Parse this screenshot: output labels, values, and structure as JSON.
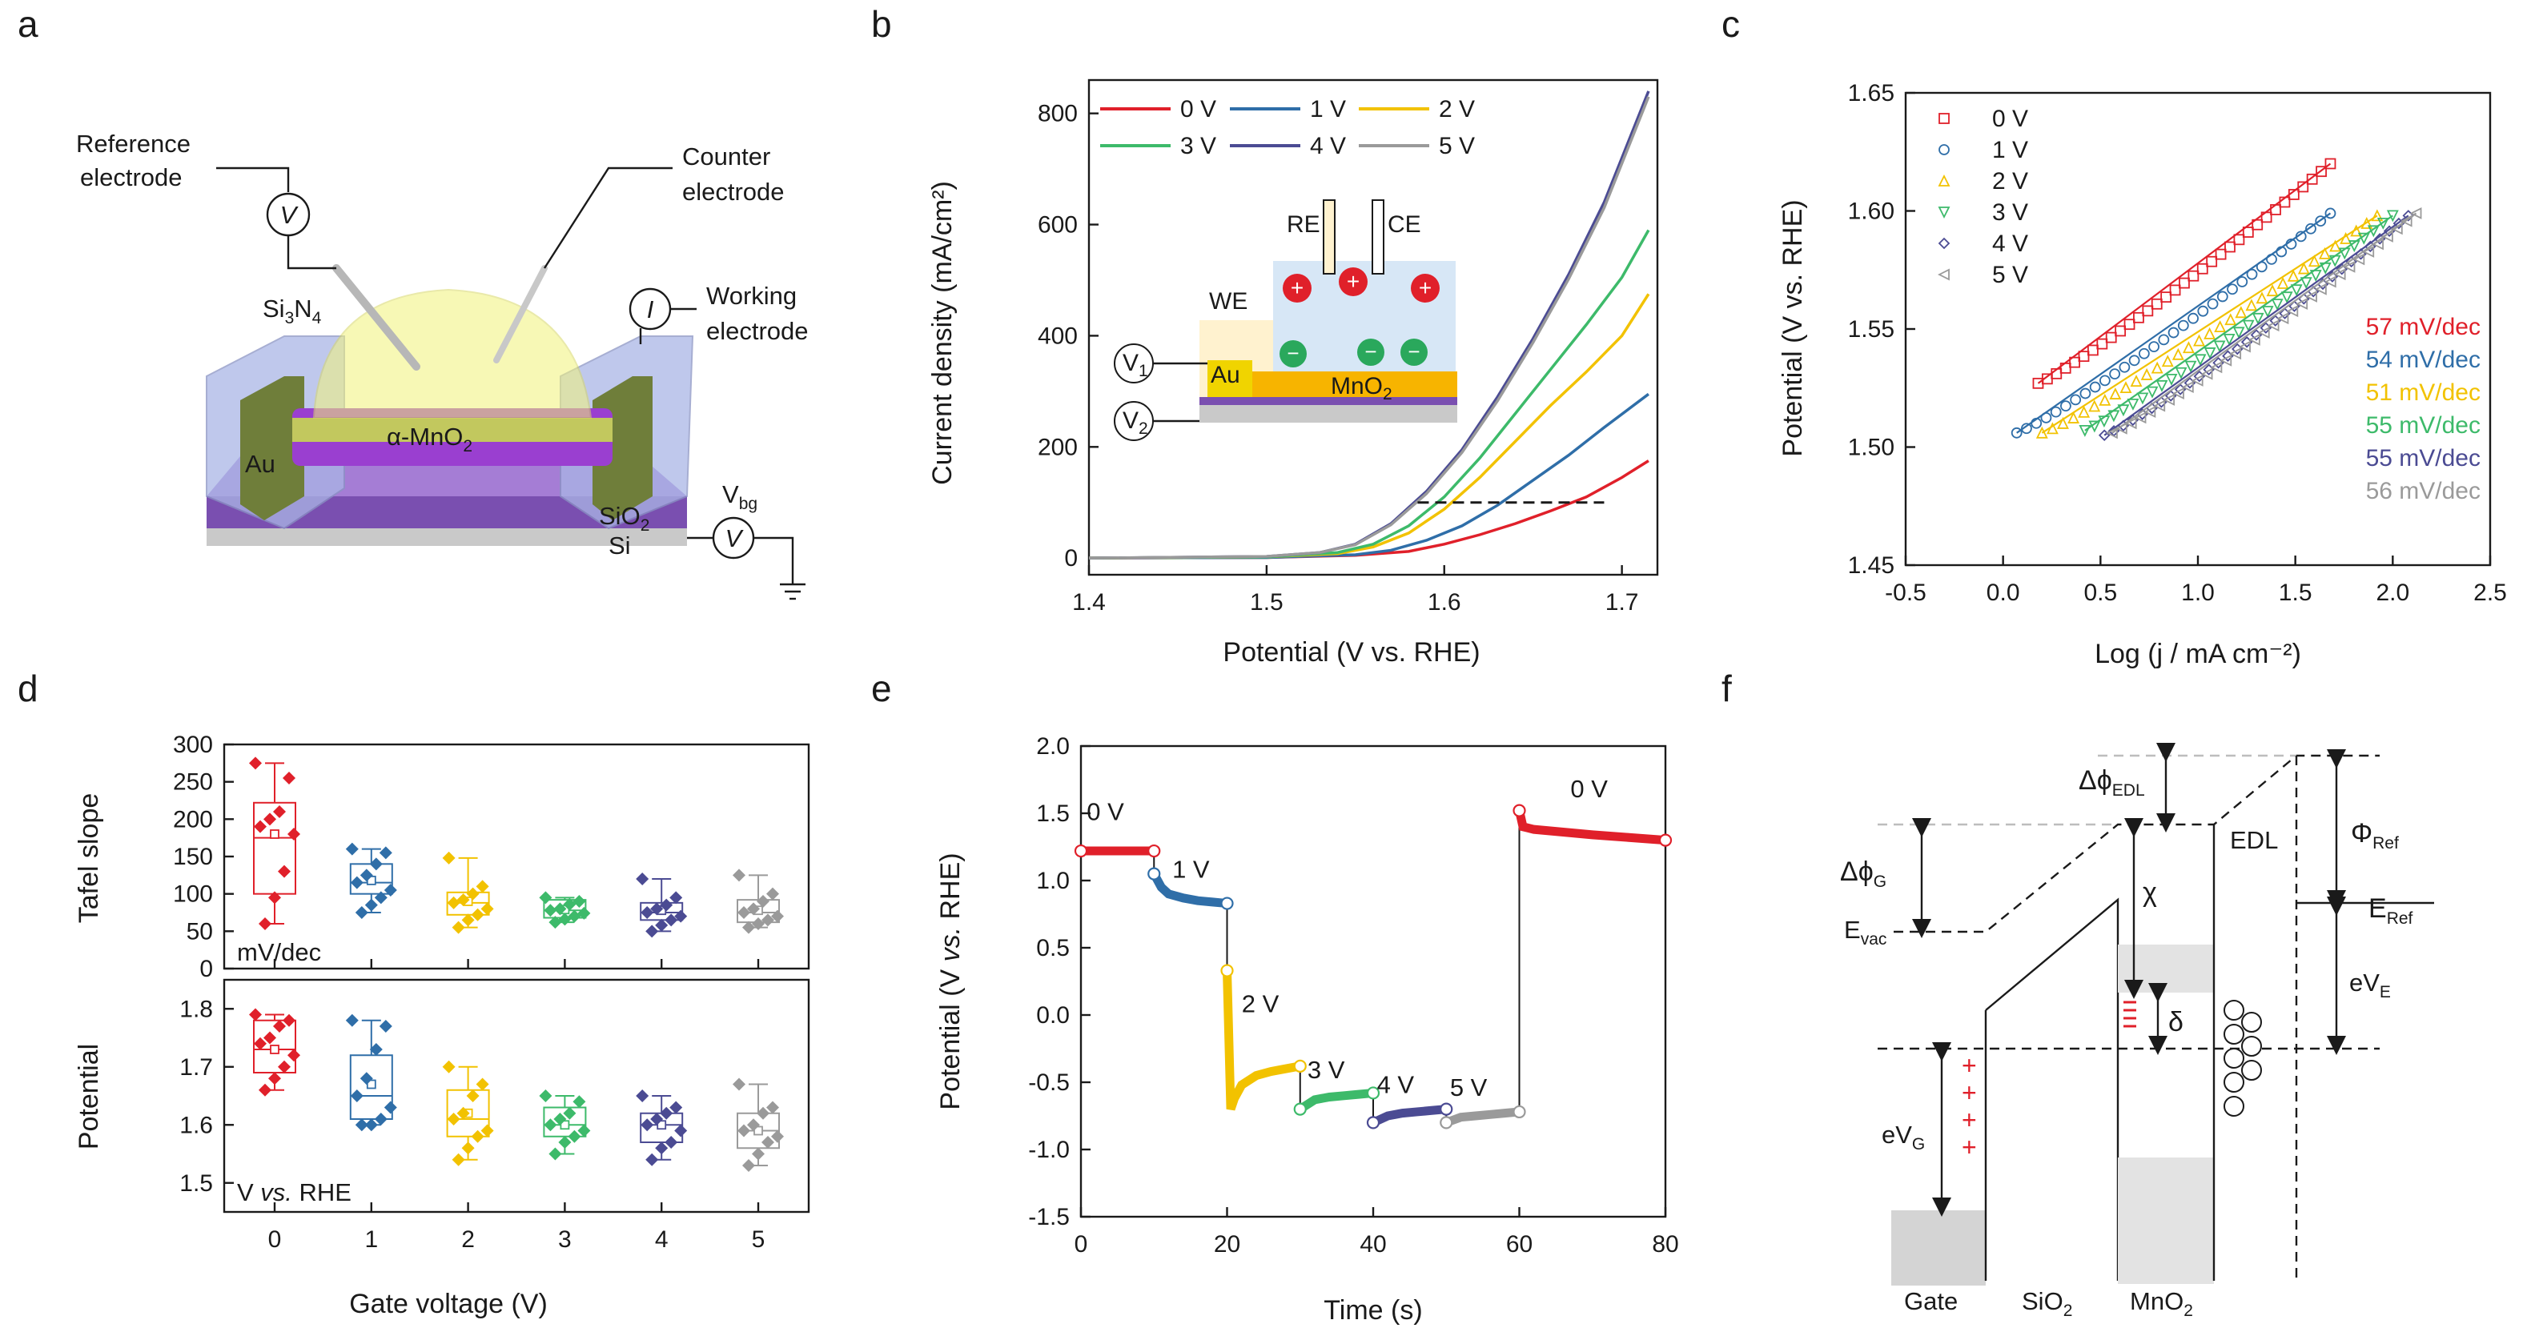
{
  "panels": {
    "a": {
      "letter": "a",
      "labels": {
        "reference": "Reference",
        "reference2": "electrode",
        "counter": "Counter",
        "counter2": "electrode",
        "working": "Working",
        "working2": "electrode",
        "si3n4": "Si",
        "si3n4_sub1": "3",
        "si3n4_mid": "N",
        "si3n4_sub2": "4",
        "au": "Au",
        "mno2": "α-MnO",
        "mno2_sub": "2",
        "sio2": "SiO",
        "sio2_sub": "2",
        "si": "Si",
        "vbg": "V",
        "vbg_sub": "bg",
        "v_symbol": "V",
        "i_symbol": "I"
      }
    },
    "b": {
      "letter": "b",
      "inset": {
        "re": "RE",
        "ce": "CE",
        "we": "WE",
        "au": "Au",
        "mno2": "MnO",
        "mno2_sub": "2",
        "v1": "V",
        "v1_sub": "1",
        "v2": "V",
        "v2_sub": "2",
        "plus": "+",
        "minus": "−"
      }
    },
    "c": {
      "letter": "c"
    },
    "d": {
      "letter": "d",
      "top_unit": "mV/dec",
      "bottom_unit_prefix": "V ",
      "bottom_unit_italic": "vs.",
      "bottom_unit_suffix": " RHE"
    },
    "e": {
      "letter": "e"
    },
    "f": {
      "letter": "f",
      "labels": {
        "dphi_edl": "Δϕ",
        "dphi_edl_sub": "EDL",
        "dphi_g": "Δϕ",
        "dphi_g_sub": "G",
        "evac": "E",
        "evac_sub": "vac",
        "chi": "χ",
        "delta": "δ",
        "edl": "EDL",
        "phi_ref": "Φ",
        "phi_ref_sub": "Ref",
        "e_ref": "E",
        "e_ref_sub": "Ref",
        "ev_e": "eV",
        "ev_e_sub": "E",
        "ev_g": "eV",
        "ev_g_sub": "G",
        "gate": "Gate",
        "sio2": "SiO",
        "sio2_sub": "2",
        "mno2": "MnO",
        "mno2_sub": "2",
        "plus": "+",
        "minus": "−"
      }
    }
  },
  "colors": {
    "0V": "#e0202a",
    "1V": "#2f6ea8",
    "2V": "#f2c200",
    "3V": "#3dba6a",
    "4V": "#4b4b93",
    "5V": "#9a9a9a"
  },
  "chart_data": [
    {
      "panel": "b",
      "type": "line",
      "xlabel": "Potential (V vs. RHE)",
      "ylabel": "Current density (mA/cm²)",
      "xlim": [
        1.4,
        1.72
      ],
      "ylim": [
        -30,
        860
      ],
      "xticks": [
        "1.4",
        "1.5",
        "1.6",
        "1.7"
      ],
      "yticks": [
        "0",
        "200",
        "400",
        "600",
        "800"
      ],
      "legend": [
        "0 V",
        "1 V",
        "2 V",
        "3 V",
        "4 V",
        "5 V"
      ],
      "series": [
        {
          "name": "0 V",
          "x": [
            1.4,
            1.5,
            1.55,
            1.58,
            1.6,
            1.62,
            1.64,
            1.66,
            1.68,
            1.7,
            1.715
          ],
          "y": [
            0,
            1,
            5,
            12,
            25,
            42,
            62,
            85,
            110,
            145,
            175
          ]
        },
        {
          "name": "1 V",
          "x": [
            1.4,
            1.5,
            1.55,
            1.57,
            1.59,
            1.61,
            1.63,
            1.65,
            1.67,
            1.69,
            1.715
          ],
          "y": [
            0,
            1,
            6,
            14,
            32,
            58,
            95,
            140,
            185,
            235,
            295
          ]
        },
        {
          "name": "2 V",
          "x": [
            1.4,
            1.5,
            1.54,
            1.56,
            1.58,
            1.6,
            1.62,
            1.64,
            1.66,
            1.68,
            1.7,
            1.715
          ],
          "y": [
            0,
            2,
            8,
            20,
            45,
            88,
            145,
            210,
            275,
            335,
            400,
            475
          ]
        },
        {
          "name": "3 V",
          "x": [
            1.4,
            1.5,
            1.54,
            1.56,
            1.58,
            1.6,
            1.62,
            1.64,
            1.66,
            1.68,
            1.7,
            1.715
          ],
          "y": [
            0,
            2,
            10,
            25,
            58,
            110,
            180,
            260,
            340,
            420,
            505,
            590
          ]
        },
        {
          "name": "4 V",
          "x": [
            1.4,
            1.5,
            1.53,
            1.55,
            1.57,
            1.59,
            1.61,
            1.63,
            1.65,
            1.67,
            1.69,
            1.7,
            1.715
          ],
          "y": [
            0,
            3,
            10,
            25,
            62,
            120,
            195,
            290,
            395,
            510,
            640,
            720,
            840
          ]
        },
        {
          "name": "5 V",
          "x": [
            1.4,
            1.5,
            1.53,
            1.55,
            1.57,
            1.59,
            1.61,
            1.63,
            1.65,
            1.67,
            1.69,
            1.7,
            1.715
          ],
          "y": [
            0,
            3,
            10,
            24,
            60,
            116,
            190,
            283,
            388,
            502,
            630,
            710,
            830
          ]
        }
      ],
      "annotation": {
        "type": "dashed-line",
        "y": 100,
        "x": [
          1.585,
          1.69
        ]
      }
    },
    {
      "panel": "c",
      "type": "scatter",
      "xlabel": "Log (j / mA cm⁻²)",
      "ylabel": "Potential (V vs. RHE)",
      "xlim": [
        -0.5,
        2.5
      ],
      "ylim": [
        1.45,
        1.65
      ],
      "xticks": [
        "-0.5",
        "0.0",
        "0.5",
        "1.0",
        "1.5",
        "2.0",
        "2.5"
      ],
      "yticks": [
        "1.45",
        "1.50",
        "1.55",
        "1.60",
        "1.65"
      ],
      "legend": [
        "0 V",
        "1 V",
        "2 V",
        "3 V",
        "4 V",
        "5 V"
      ],
      "slopes": [
        "57 mV/dec",
        "54 mV/dec",
        "51 mV/dec",
        "55 mV/dec",
        "55 mV/dec",
        "56 mV/dec"
      ],
      "series": [
        {
          "name": "0 V",
          "marker": "square",
          "x0": 0.18,
          "y0": 1.527,
          "x1": 1.68,
          "y1": 1.62
        },
        {
          "name": "1 V",
          "marker": "circle",
          "x0": 0.07,
          "y0": 1.506,
          "x1": 1.68,
          "y1": 1.599
        },
        {
          "name": "2 V",
          "marker": "triangle-up",
          "x0": 0.2,
          "y0": 1.506,
          "x1": 1.92,
          "y1": 1.598
        },
        {
          "name": "3 V",
          "marker": "triangle-down",
          "x0": 0.42,
          "y0": 1.507,
          "x1": 2.0,
          "y1": 1.598
        },
        {
          "name": "4 V",
          "marker": "diamond",
          "x0": 0.52,
          "y0": 1.505,
          "x1": 2.08,
          "y1": 1.598
        },
        {
          "name": "5 V",
          "marker": "triangle-left",
          "x0": 0.56,
          "y0": 1.506,
          "x1": 2.12,
          "y1": 1.599
        }
      ]
    },
    {
      "panel": "d",
      "type": "box",
      "xlabel": "Gate voltage (V)",
      "categories": [
        "0",
        "1",
        "2",
        "3",
        "4",
        "5"
      ],
      "top": {
        "ylabel": "Tafel slope",
        "ylim": [
          0,
          300
        ],
        "yticks": [
          "0",
          "50",
          "100",
          "150",
          "200",
          "250",
          "300"
        ],
        "boxes": [
          {
            "q1": 100,
            "median": 175,
            "q3": 222,
            "min": 60,
            "max": 275,
            "mean": 180,
            "points": [
              275,
              255,
              210,
              200,
              190,
              180,
              130,
              95,
              60
            ]
          },
          {
            "q1": 100,
            "median": 115,
            "q3": 140,
            "min": 75,
            "max": 160,
            "mean": 118,
            "points": [
              160,
              155,
              140,
              125,
              115,
              105,
              95,
              85,
              75
            ]
          },
          {
            "q1": 72,
            "median": 88,
            "q3": 102,
            "min": 55,
            "max": 148,
            "mean": 90,
            "points": [
              148,
              110,
              100,
              92,
              88,
              80,
              72,
              65,
              55
            ]
          },
          {
            "q1": 68,
            "median": 78,
            "q3": 92,
            "min": 62,
            "max": 95,
            "mean": 79,
            "points": [
              95,
              90,
              86,
              80,
              78,
              74,
              70,
              66,
              62
            ]
          },
          {
            "q1": 65,
            "median": 75,
            "q3": 88,
            "min": 50,
            "max": 120,
            "mean": 78,
            "points": [
              120,
              95,
              85,
              80,
              75,
              70,
              65,
              58,
              50
            ]
          },
          {
            "q1": 62,
            "median": 75,
            "q3": 92,
            "min": 55,
            "max": 125,
            "mean": 78,
            "points": [
              125,
              100,
              90,
              80,
              75,
              70,
              65,
              60,
              55
            ]
          }
        ]
      },
      "bottom": {
        "ylabel": "Potential",
        "ylim": [
          1.45,
          1.85
        ],
        "yticks": [
          "1.5",
          "1.6",
          "1.7",
          "1.8"
        ],
        "boxes": [
          {
            "q1": 1.69,
            "median": 1.73,
            "q3": 1.78,
            "min": 1.66,
            "max": 1.79,
            "mean": 1.73,
            "points": [
              1.79,
              1.78,
              1.77,
              1.75,
              1.74,
              1.72,
              1.7,
              1.68,
              1.66
            ]
          },
          {
            "q1": 1.61,
            "median": 1.65,
            "q3": 1.72,
            "min": 1.6,
            "max": 1.78,
            "mean": 1.67,
            "points": [
              1.78,
              1.77,
              1.73,
              1.68,
              1.65,
              1.63,
              1.61,
              1.6,
              1.6
            ]
          },
          {
            "q1": 1.58,
            "median": 1.61,
            "q3": 1.66,
            "min": 1.54,
            "max": 1.7,
            "mean": 1.62,
            "points": [
              1.7,
              1.67,
              1.65,
              1.62,
              1.61,
              1.59,
              1.58,
              1.56,
              1.54
            ]
          },
          {
            "q1": 1.58,
            "median": 1.6,
            "q3": 1.63,
            "min": 1.55,
            "max": 1.65,
            "mean": 1.6,
            "points": [
              1.65,
              1.64,
              1.62,
              1.61,
              1.6,
              1.59,
              1.58,
              1.57,
              1.55
            ]
          },
          {
            "q1": 1.57,
            "median": 1.6,
            "q3": 1.62,
            "min": 1.54,
            "max": 1.65,
            "mean": 1.6,
            "points": [
              1.65,
              1.63,
              1.62,
              1.61,
              1.6,
              1.59,
              1.57,
              1.56,
              1.54
            ]
          },
          {
            "q1": 1.56,
            "median": 1.59,
            "q3": 1.62,
            "min": 1.53,
            "max": 1.67,
            "mean": 1.59,
            "points": [
              1.67,
              1.63,
              1.62,
              1.6,
              1.59,
              1.58,
              1.57,
              1.55,
              1.53
            ]
          }
        ]
      }
    },
    {
      "panel": "e",
      "type": "line",
      "xlabel": "Time (s)",
      "ylabel_prefix": "Potential (V ",
      "ylabel_italic": "vs.",
      "ylabel_suffix": " RHE)",
      "xlim": [
        0,
        80
      ],
      "ylim": [
        -1.5,
        2.0
      ],
      "xticks": [
        "0",
        "20",
        "40",
        "60",
        "80"
      ],
      "yticks": [
        "-1.5",
        "-1.0",
        "-0.5",
        "0.0",
        "0.5",
        "1.0",
        "1.5",
        "2.0"
      ],
      "segment_labels": [
        "0 V",
        "1 V",
        "2 V",
        "3 V",
        "4 V",
        "5 V",
        "0 V"
      ],
      "series": [
        {
          "name": "0 V",
          "x": [
            0,
            10
          ],
          "y": [
            1.22,
            1.22
          ]
        },
        {
          "name": "1 V",
          "x": [
            10,
            11,
            12,
            14,
            16,
            18,
            20
          ],
          "y": [
            1.05,
            0.95,
            0.9,
            0.87,
            0.85,
            0.84,
            0.83
          ]
        },
        {
          "name": "2 V",
          "x": [
            20,
            20.5,
            21,
            22,
            24,
            26,
            28,
            30
          ],
          "y": [
            0.33,
            -0.7,
            -0.62,
            -0.52,
            -0.45,
            -0.42,
            -0.4,
            -0.38
          ]
        },
        {
          "name": "3 V",
          "x": [
            30,
            32,
            34,
            36,
            38,
            40
          ],
          "y": [
            -0.7,
            -0.63,
            -0.61,
            -0.6,
            -0.59,
            -0.58
          ]
        },
        {
          "name": "4 V",
          "x": [
            40,
            42,
            44,
            46,
            48,
            50
          ],
          "y": [
            -0.8,
            -0.75,
            -0.73,
            -0.72,
            -0.71,
            -0.7
          ]
        },
        {
          "name": "5 V",
          "x": [
            50,
            52,
            54,
            56,
            58,
            60
          ],
          "y": [
            -0.8,
            -0.76,
            -0.75,
            -0.74,
            -0.73,
            -0.72
          ]
        },
        {
          "name": "0 V (return)",
          "x": [
            60,
            60.5,
            62,
            66,
            70,
            75,
            80
          ],
          "y": [
            1.52,
            1.4,
            1.38,
            1.36,
            1.34,
            1.32,
            1.3
          ]
        }
      ]
    }
  ]
}
